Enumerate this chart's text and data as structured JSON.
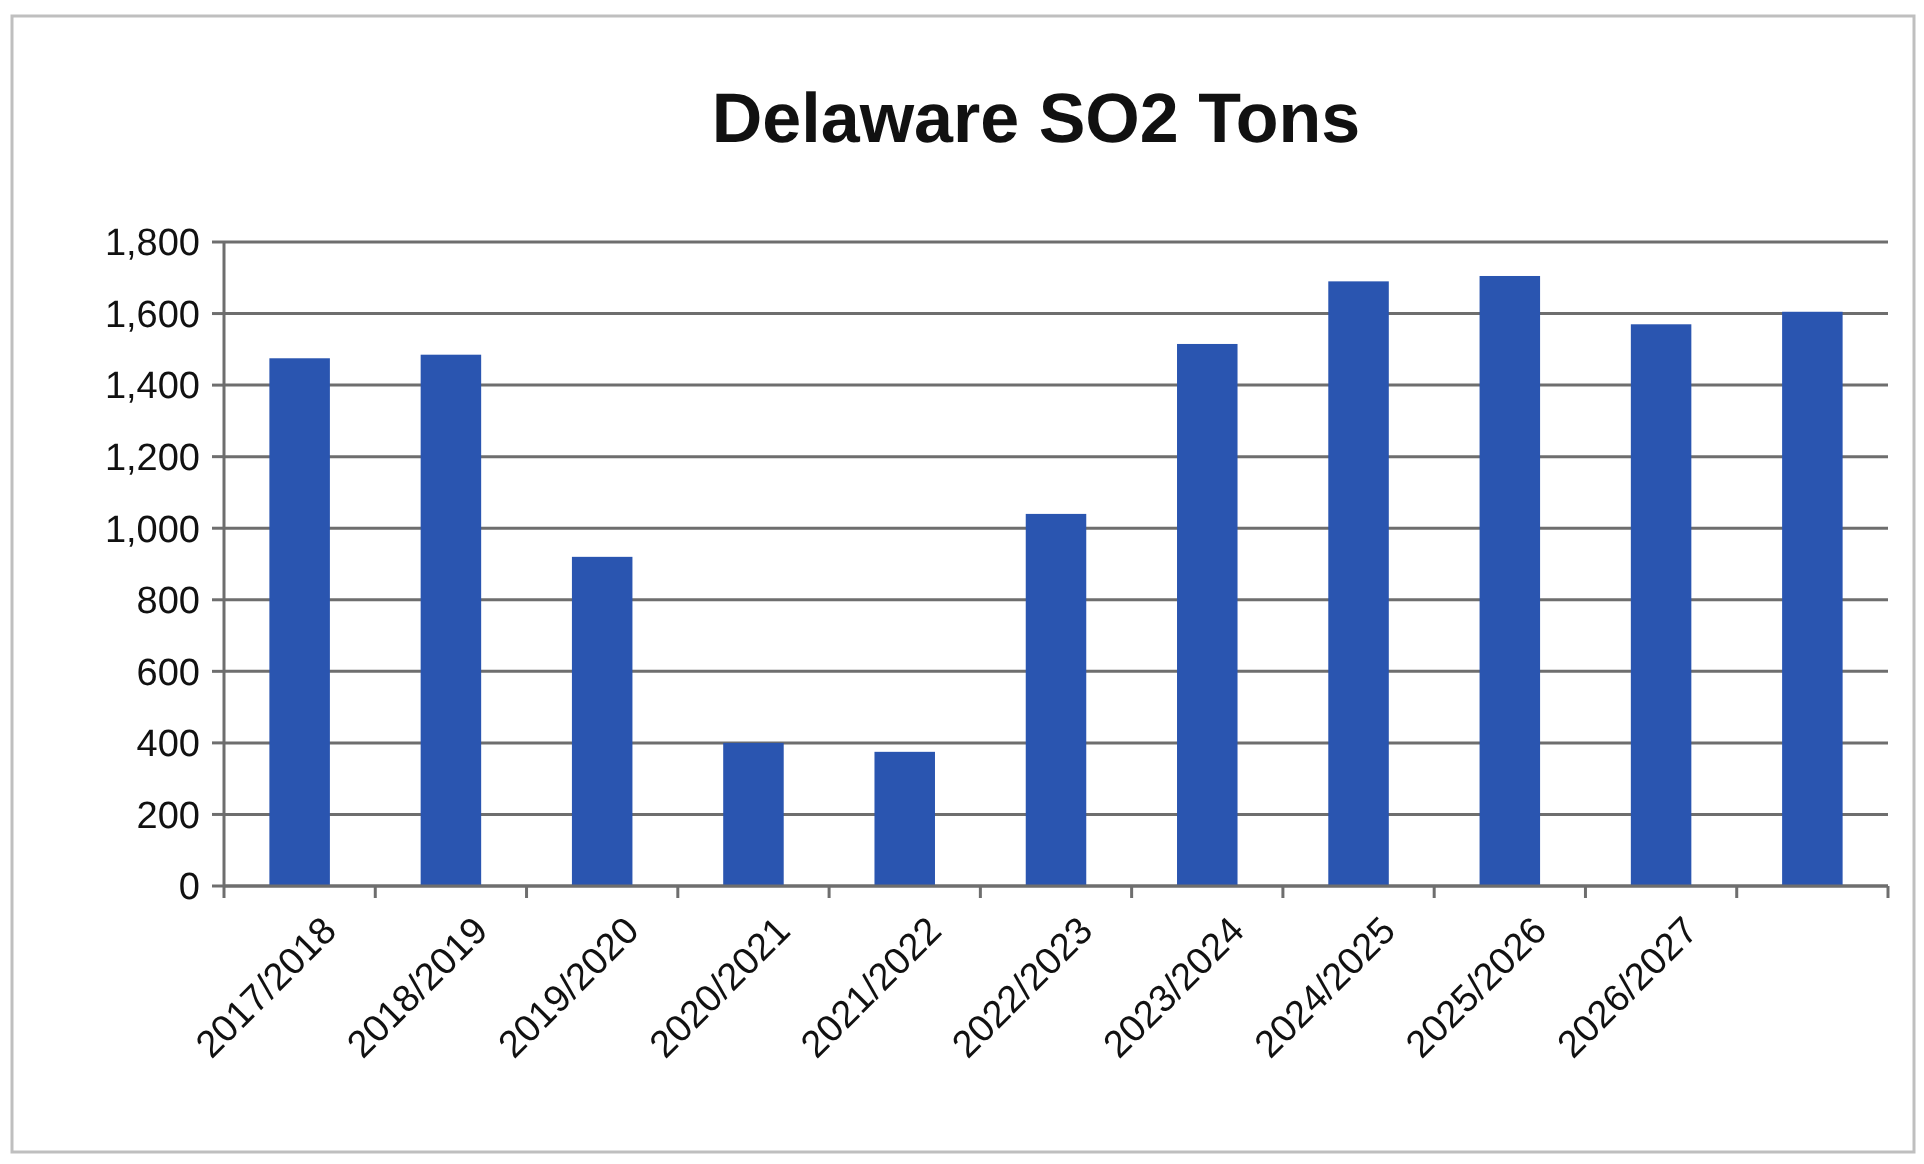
{
  "chart_data": {
    "type": "bar",
    "title": "Delaware SO2 Tons",
    "categories": [
      "2017/2018",
      "2018/2019",
      "2019/2020",
      "2020/2021",
      "2021/2022",
      "2022/2023",
      "2023/2024",
      "2024/2025",
      "2025/2026",
      "2026/2027",
      null
    ],
    "values": [
      1475,
      1485,
      920,
      400,
      375,
      1040,
      1515,
      1690,
      1705,
      1570,
      1605
    ],
    "color": "#2a55b0",
    "ylim": [
      0,
      1800
    ],
    "yticks": [
      0,
      {
        "value": 200,
        "label": "200"
      },
      {
        "value": 400,
        "label": "400"
      },
      {
        "value": 600,
        "label": "600"
      },
      {
        "value": 800,
        "label": "800"
      },
      {
        "value": 1000,
        "label": "1,000"
      },
      {
        "value": 1200,
        "label": "1,200"
      },
      {
        "value": 1400,
        "label": "1,400"
      },
      {
        "value": 1600,
        "label": "1,600"
      },
      {
        "value": 1800,
        "label": "1,800"
      }
    ],
    "grid": "y"
  }
}
